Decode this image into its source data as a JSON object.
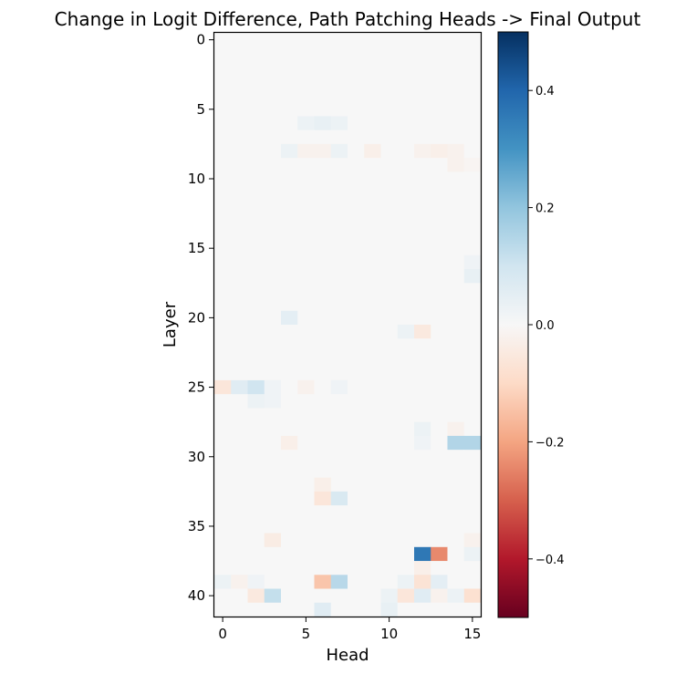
{
  "chart_data": {
    "type": "heatmap",
    "title": "Change in Logit Difference, Path Patching Heads -> Final Output",
    "xlabel": "Head",
    "ylabel": "Layer",
    "rows": 42,
    "cols": 16,
    "x_ticks": [
      0,
      5,
      10,
      15
    ],
    "x_tick_labels": [
      "0",
      "5",
      "10",
      "15"
    ],
    "y_ticks": [
      0,
      5,
      10,
      15,
      20,
      25,
      30,
      35,
      40
    ],
    "y_tick_labels": [
      "0",
      "5",
      "10",
      "15",
      "20",
      "25",
      "30",
      "35",
      "40"
    ],
    "colorbar": {
      "vmin": -0.5,
      "vmax": 0.5,
      "cmap": "RdBu",
      "ticks": [
        0.4,
        0.2,
        0.0,
        -0.2,
        -0.4
      ],
      "tick_labels": [
        "0.4",
        "0.2",
        "0.0",
        "−0.2",
        "−0.4"
      ]
    },
    "default_value": 0.0,
    "cells": [
      [
        6,
        5,
        0.03
      ],
      [
        6,
        6,
        0.04
      ],
      [
        6,
        7,
        0.03
      ],
      [
        8,
        4,
        0.03
      ],
      [
        8,
        5,
        -0.02
      ],
      [
        8,
        6,
        -0.02
      ],
      [
        8,
        7,
        0.03
      ],
      [
        8,
        9,
        -0.03
      ],
      [
        8,
        12,
        -0.02
      ],
      [
        8,
        13,
        -0.03
      ],
      [
        8,
        14,
        -0.02
      ],
      [
        9,
        14,
        -0.02
      ],
      [
        9,
        15,
        -0.01
      ],
      [
        16,
        15,
        0.02
      ],
      [
        17,
        15,
        0.04
      ],
      [
        20,
        4,
        0.05
      ],
      [
        21,
        11,
        0.03
      ],
      [
        21,
        12,
        -0.05
      ],
      [
        25,
        0,
        -0.06
      ],
      [
        25,
        1,
        0.06
      ],
      [
        25,
        2,
        0.1
      ],
      [
        25,
        3,
        0.02
      ],
      [
        25,
        5,
        -0.02
      ],
      [
        25,
        7,
        0.02
      ],
      [
        26,
        2,
        0.03
      ],
      [
        26,
        3,
        0.02
      ],
      [
        28,
        12,
        0.03
      ],
      [
        28,
        14,
        -0.02
      ],
      [
        29,
        4,
        -0.03
      ],
      [
        29,
        12,
        0.02
      ],
      [
        29,
        14,
        0.15
      ],
      [
        29,
        15,
        0.15
      ],
      [
        32,
        6,
        -0.03
      ],
      [
        33,
        6,
        -0.06
      ],
      [
        33,
        7,
        0.08
      ],
      [
        36,
        3,
        -0.04
      ],
      [
        36,
        15,
        -0.02
      ],
      [
        37,
        12,
        0.36
      ],
      [
        37,
        13,
        -0.24
      ],
      [
        37,
        15,
        0.03
      ],
      [
        38,
        12,
        -0.03
      ],
      [
        39,
        0,
        0.03
      ],
      [
        39,
        1,
        -0.02
      ],
      [
        39,
        2,
        0.02
      ],
      [
        39,
        6,
        -0.14
      ],
      [
        39,
        7,
        0.14
      ],
      [
        39,
        11,
        0.03
      ],
      [
        39,
        12,
        -0.07
      ],
      [
        39,
        13,
        0.05
      ],
      [
        40,
        2,
        -0.05
      ],
      [
        40,
        3,
        0.12
      ],
      [
        40,
        10,
        0.03
      ],
      [
        40,
        11,
        -0.06
      ],
      [
        40,
        12,
        0.06
      ],
      [
        40,
        13,
        -0.02
      ],
      [
        40,
        14,
        0.03
      ],
      [
        40,
        15,
        -0.08
      ],
      [
        41,
        6,
        0.06
      ],
      [
        41,
        10,
        0.04
      ]
    ]
  }
}
